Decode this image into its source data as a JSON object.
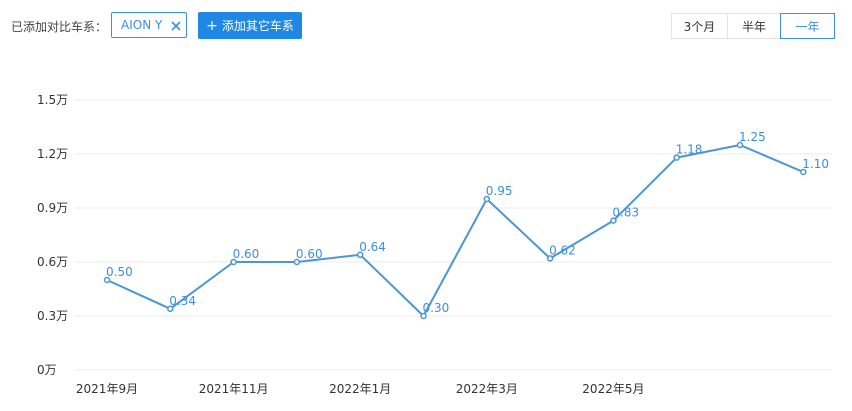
{
  "toolbar": {
    "compare_label": "已添加对比车系：",
    "chip_label": "AION Y",
    "chip_remove_icon": "close-icon",
    "add_icon": "plus-icon",
    "add_label": "添加其它车系",
    "ranges": {
      "three_months": "3个月",
      "half_year": "半年",
      "one_year": "一年"
    },
    "selected_range": "one_year"
  },
  "colors": {
    "accent": "#3a8ee6",
    "button_bg": "#1f88e5",
    "line": "#4a97d3",
    "grid": "#ebebeb"
  },
  "chart_data": {
    "type": "line",
    "categories": [
      "2021年9月",
      "",
      "2021年11月",
      "",
      "2022年1月",
      "",
      "2022年3月",
      "",
      "2022年5月",
      "",
      "",
      ""
    ],
    "series": [
      {
        "values": [
          0.5,
          0.34,
          0.6,
          0.6,
          0.64,
          0.3,
          0.95,
          0.62,
          0.83,
          1.18,
          1.25,
          1.1
        ]
      }
    ],
    "data_labels": [
      "0.50",
      "0.34",
      "0.60",
      "0.60",
      "0.64",
      "0.30",
      "0.95",
      "0.62",
      "0.83",
      "1.18",
      "1.25",
      "1.10"
    ],
    "yticks": [
      0,
      0.3,
      0.6,
      0.9,
      1.2,
      1.5
    ],
    "ytick_labels": [
      "0万",
      "0.3万",
      "0.6万",
      "0.9万",
      "1.2万",
      "1.5万"
    ],
    "ylim": [
      0,
      1.5
    ],
    "grid": true,
    "legend": "none"
  }
}
